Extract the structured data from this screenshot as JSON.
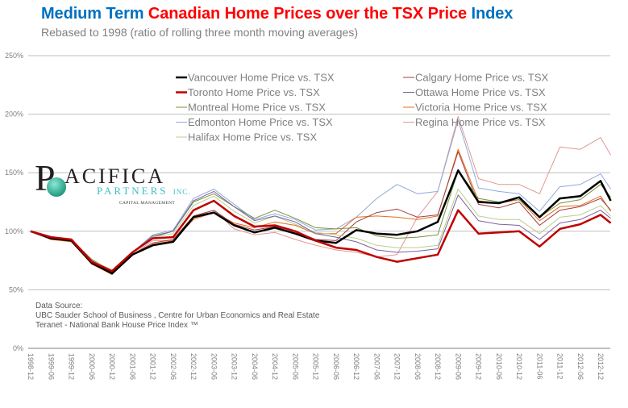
{
  "header": {
    "title_part1": "Medium Term ",
    "title_part2": "Canadian Home Prices over the TSX Price ",
    "title_part3": "Index",
    "subtitle": "Rebased to 1998 (ratio of rolling three month moving averages)"
  },
  "logo": {
    "letter": "P",
    "name": "ACIFICA",
    "partners": "PARTNERS",
    "inc": "INC.",
    "tagline": "CAPITAL MANAGEMENT"
  },
  "source": {
    "line1": "Data Source:",
    "line2": "UBC Sauder School of Business , Centre for Urban Economics and Real Estate",
    "line3": "Teranet - National Bank House Price Index ™"
  },
  "chart_data": {
    "type": "line",
    "title": "Medium Term Canadian Home Prices over the TSX Price Index",
    "subtitle": "Rebased to 1998 (ratio of rolling three month moving averages)",
    "xlabel": "",
    "ylabel": "",
    "ylim": [
      0,
      250
    ],
    "y_ticks": [
      "0%",
      "50%",
      "100%",
      "150%",
      "200%",
      "250%"
    ],
    "y_tick_values": [
      0,
      50,
      100,
      150,
      200,
      250
    ],
    "grid": true,
    "legend_placement": "top-center",
    "x": [
      "1998-12",
      "1999-06",
      "1999-12",
      "2000-06",
      "2000-12",
      "2001-06",
      "2001-12",
      "2002-06",
      "2002-12",
      "2003-06",
      "2003-12",
      "2004-06",
      "2004-12",
      "2005-06",
      "2005-12",
      "2006-06",
      "2006-12",
      "2007-06",
      "2007-12",
      "2008-06",
      "2008-12",
      "2009-06",
      "2009-12",
      "2010-06",
      "2010-12",
      "2011-06",
      "2011-12",
      "2012-06",
      "2012-12",
      "2013-03"
    ],
    "x_tick_labels": [
      "1998-12",
      "1999-06",
      "1999-12",
      "2000-06",
      "2000-12",
      "2001-06",
      "2001-12",
      "2002-06",
      "2002-12",
      "2003-06",
      "2003-12",
      "2004-06",
      "2004-12",
      "2005-06",
      "2005-12",
      "2006-06",
      "2006-12",
      "2007-06",
      "2007-12",
      "2008-06",
      "2008-12",
      "2009-06",
      "2009-12",
      "2010-06",
      "2010-12",
      "2011-06",
      "2011-12",
      "2012-06",
      "2012-12"
    ],
    "series": [
      {
        "name": "Vancouver Home Price vs. TSX",
        "color": "#000000",
        "width": 2.5,
        "legend_col": 0,
        "values": [
          100,
          94,
          92,
          73,
          64,
          80,
          88,
          91,
          112,
          116,
          105,
          99,
          103,
          98,
          92,
          90,
          101,
          98,
          97,
          100,
          108,
          152,
          125,
          124,
          129,
          112,
          128,
          130,
          143,
          126
        ]
      },
      {
        "name": "Toronto Home Price vs. TSX",
        "color": "#c00000",
        "width": 2.5,
        "legend_col": 0,
        "values": [
          100,
          95,
          93,
          74,
          66,
          82,
          94,
          95,
          118,
          126,
          113,
          104,
          105,
          100,
          92,
          86,
          84,
          78,
          74,
          77,
          80,
          118,
          98,
          99,
          100,
          87,
          102,
          106,
          114,
          107
        ]
      },
      {
        "name": "Montreal Home Price vs. TSX",
        "color": "#77933c",
        "width": 1,
        "legend_col": 0,
        "values": [
          100,
          95,
          93,
          76,
          66,
          82,
          95,
          100,
          125,
          132,
          121,
          111,
          118,
          111,
          103,
          102,
          103,
          96,
          94,
          95,
          97,
          152,
          128,
          125,
          127,
          112,
          124,
          127,
          140,
          129
        ]
      },
      {
        "name": "Edmonton Home Price vs. TSX",
        "color": "#8eaadb",
        "width": 1,
        "legend_col": 0,
        "values": [
          100,
          94,
          93,
          73,
          64,
          82,
          97,
          101,
          128,
          136,
          123,
          110,
          115,
          110,
          101,
          102,
          112,
          128,
          140,
          132,
          134,
          195,
          137,
          134,
          132,
          117,
          138,
          140,
          149,
          136
        ]
      },
      {
        "name": "Halifax Home Price vs. TSX",
        "color": "#b8d08c",
        "width": 1,
        "legend_col": 0,
        "values": [
          100,
          95,
          93,
          75,
          67,
          82,
          95,
          98,
          122,
          130,
          117,
          107,
          113,
          106,
          99,
          97,
          94,
          88,
          86,
          86,
          88,
          136,
          113,
          110,
          110,
          98,
          112,
          114,
          122,
          113
        ]
      },
      {
        "name": "Calgary Home Price vs. TSX",
        "color": "#a0403c",
        "width": 1,
        "legend_col": 1,
        "values": [
          100,
          93,
          92,
          72,
          64,
          80,
          90,
          93,
          113,
          118,
          106,
          101,
          104,
          100,
          93,
          92,
          108,
          116,
          119,
          112,
          114,
          168,
          123,
          120,
          125,
          105,
          118,
          121,
          128,
          118
        ]
      },
      {
        "name": "Ottawa Home Price vs. TSX",
        "color": "#7f5fa0",
        "width": 1,
        "legend_col": 1,
        "values": [
          100,
          95,
          93,
          75,
          65,
          82,
          96,
          100,
          126,
          134,
          121,
          109,
          113,
          108,
          98,
          95,
          91,
          84,
          82,
          83,
          85,
          131,
          109,
          106,
          105,
          93,
          107,
          110,
          118,
          111
        ]
      },
      {
        "name": "Victoria Home Price vs. TSX",
        "color": "#e46c1f",
        "width": 1,
        "legend_col": 1,
        "values": [
          100,
          93,
          91,
          72,
          63,
          80,
          89,
          92,
          110,
          116,
          107,
          103,
          108,
          105,
          98,
          98,
          112,
          113,
          112,
          110,
          113,
          170,
          126,
          124,
          127,
          109,
          121,
          122,
          130,
          117
        ]
      },
      {
        "name": "Regina Home Price vs. TSX",
        "color": "#e09890",
        "width": 1,
        "legend_col": 1,
        "values": [
          100,
          94,
          92,
          73,
          64,
          80,
          92,
          92,
          112,
          118,
          102,
          97,
          99,
          93,
          88,
          84,
          82,
          78,
          80,
          112,
          134,
          198,
          145,
          140,
          140,
          132,
          172,
          170,
          180,
          165
        ]
      }
    ]
  }
}
